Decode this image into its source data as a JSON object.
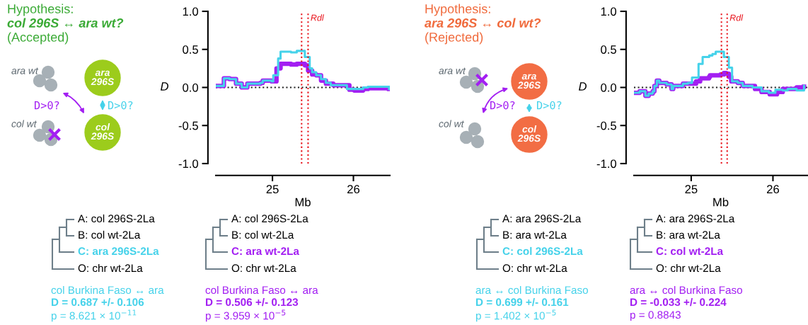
{
  "chart_data": [
    {
      "type": "step",
      "xlabel": "Mb",
      "ylabel": "D",
      "xlim": [
        24.3,
        26.45
      ],
      "xticks": [
        25,
        26
      ],
      "ylim": [
        -1,
        1
      ],
      "yticks": [
        {
          "value": -1,
          "label": "-1.0"
        },
        {
          "value": -0.5,
          "label": "-0.5"
        },
        {
          "value": 0,
          "label": "0.0"
        },
        {
          "value": 0.5,
          "label": "0.5"
        },
        {
          "value": 1,
          "label": "1.0"
        }
      ],
      "grid": false,
      "line_style": "solid",
      "series": [
        {
          "color": "#a31ff2",
          "x": [
            24.3,
            24.4,
            24.47,
            24.55,
            24.62,
            24.69,
            24.85,
            24.88,
            24.99,
            25.05,
            25.1,
            25.23,
            25.3,
            25.4,
            25.44,
            25.49,
            25.54,
            25.6,
            25.66,
            25.75,
            25.95,
            26.01,
            26.12,
            26.18,
            26.44
          ],
          "values": [
            0.02,
            0.12,
            0.11,
            0.05,
            0.0,
            0.05,
            0.06,
            0.09,
            0.08,
            0.25,
            0.31,
            0.3,
            0.31,
            0.29,
            0.22,
            0.17,
            0.16,
            0.09,
            0.05,
            0.03,
            -0.03,
            -0.04,
            -0.02,
            -0.01,
            -0.02
          ]
        },
        {
          "color": "#45d2ea",
          "x": [
            24.3,
            24.4,
            24.47,
            24.55,
            24.62,
            24.69,
            24.85,
            24.88,
            24.99,
            25.01,
            25.07,
            25.1,
            25.23,
            25.3,
            25.4,
            25.46,
            25.49,
            25.54,
            25.6,
            25.66,
            25.72,
            25.92,
            26.12,
            26.18,
            26.44
          ],
          "values": [
            0.02,
            0.12,
            0.11,
            0.05,
            0.0,
            0.05,
            0.06,
            0.09,
            0.08,
            0.16,
            0.38,
            0.47,
            0.46,
            0.48,
            0.4,
            0.25,
            0.2,
            0.16,
            0.11,
            0.06,
            0.03,
            -0.02,
            0.0,
            0.01,
            -0.02
          ]
        }
      ],
      "ref_lines": [
        {
          "axis": "y",
          "value": 0,
          "color": "#222222",
          "line_style": "dotted"
        },
        {
          "axis": "x",
          "value": 25.36,
          "color": "#e8141c",
          "line_style": "dotted"
        },
        {
          "axis": "x",
          "value": 25.44,
          "label": "Rdl",
          "color": "#e8141c",
          "line_style": "dotted"
        }
      ],
      "annotations": [
        "Hypothesis:",
        "col 296S ↔ ara wt?",
        "(Accepted)",
        "ara wt",
        "col wt",
        "D>0?",
        "D>0?",
        "ara\n296S",
        "col\n296S",
        "A: col 296S-2La",
        "B: col wt-2La",
        "C: ara 296S-2La",
        "O: chr wt-2La",
        "A: col 296S-2La",
        "B: col wt-2La",
        "C: ara wt-2La",
        "O: chr wt-2La",
        "col Burkina Faso ↔ ara",
        "D = 0.687 +/- 0.106",
        "p = 8.621 × 10$^{−11}$",
        "col Burkina Faso ↔ ara",
        "D = 0.506 +/- 0.123",
        "p = 3.959 × 10$^{−5}$"
      ]
    },
    {
      "type": "step",
      "xlabel": "Mb",
      "ylabel": "D",
      "xlim": [
        24.3,
        26.42
      ],
      "xticks": [
        25,
        26
      ],
      "ylim": [
        -1,
        1
      ],
      "yticks": [
        {
          "value": -1,
          "label": "-1.0"
        },
        {
          "value": -0.5,
          "label": "-0.5"
        },
        {
          "value": 0,
          "label": "0.0"
        },
        {
          "value": 0.5,
          "label": "0.5"
        },
        {
          "value": 1,
          "label": "1.0"
        }
      ],
      "grid": false,
      "line_style": "solid",
      "series": [
        {
          "color": "#a31ff2",
          "x": [
            24.3,
            24.37,
            24.44,
            24.48,
            24.53,
            24.55,
            24.58,
            24.61,
            24.7,
            24.76,
            24.78,
            24.9,
            25.03,
            25.06,
            25.11,
            25.22,
            25.23,
            25.36,
            25.4,
            25.43,
            25.46,
            25.49,
            25.57,
            25.63,
            25.78,
            25.86,
            25.96,
            26.05,
            26.12,
            26.29,
            26.38
          ],
          "values": [
            -0.07,
            -0.05,
            -0.11,
            -0.08,
            -0.05,
            0.02,
            0.09,
            0.06,
            0.04,
            -0.02,
            0.02,
            0.05,
            0.05,
            0.08,
            0.12,
            0.14,
            0.16,
            0.17,
            0.19,
            0.18,
            0.14,
            0.08,
            0.06,
            0.02,
            -0.02,
            -0.06,
            -0.09,
            -0.06,
            -0.02,
            0.0,
            0.01
          ]
        },
        {
          "color": "#45d2ea",
          "x": [
            24.3,
            24.37,
            24.44,
            24.48,
            24.53,
            24.55,
            24.58,
            24.61,
            24.7,
            24.76,
            24.78,
            24.9,
            24.96,
            25.01,
            25.09,
            25.14,
            25.22,
            25.26,
            25.3,
            25.4,
            25.46,
            25.5,
            25.57,
            25.63,
            25.75,
            25.86,
            25.95,
            26.03,
            26.12,
            26.18,
            26.29,
            26.38
          ],
          "values": [
            -0.07,
            -0.05,
            -0.11,
            -0.08,
            -0.05,
            0.02,
            0.09,
            0.06,
            0.04,
            -0.02,
            0.02,
            0.05,
            0.06,
            0.13,
            0.31,
            0.4,
            0.42,
            0.44,
            0.47,
            0.4,
            0.26,
            0.08,
            0.06,
            0.02,
            0.0,
            -0.05,
            -0.07,
            -0.03,
            -0.04,
            -0.02,
            -0.04,
            0.02
          ]
        }
      ],
      "ref_lines": [
        {
          "axis": "y",
          "value": 0,
          "color": "#222222",
          "line_style": "dotted"
        },
        {
          "axis": "x",
          "value": 25.37,
          "color": "#e8141c",
          "line_style": "dotted"
        },
        {
          "axis": "x",
          "value": 25.44,
          "label": "Rdl",
          "color": "#e8141c",
          "line_style": "dotted"
        }
      ],
      "annotations": [
        "Hypothesis:",
        "ara 296S ↔ col wt?",
        "(Rejected)",
        "ara wt",
        "col wt",
        "D>0?",
        "D>0?",
        "ara\n296S",
        "col\n296S",
        "A: ara 296S-2La",
        "B: ara wt-2La",
        "C: col 296S-2La",
        "O: chr wt-2La",
        "A: ara 296S-2La",
        "B: ara wt-2La",
        "C: col wt-2La",
        "O: chr wt-2La",
        "ara ↔ col Burkina Faso",
        "D = 0.699 +/- 0.161",
        "p = 1.402 × 10$^{−5}$",
        "ara ↔ col Burkina Faso",
        "D = -0.033 +/- 0.224",
        "p = 0.8843"
      ]
    }
  ]
}
